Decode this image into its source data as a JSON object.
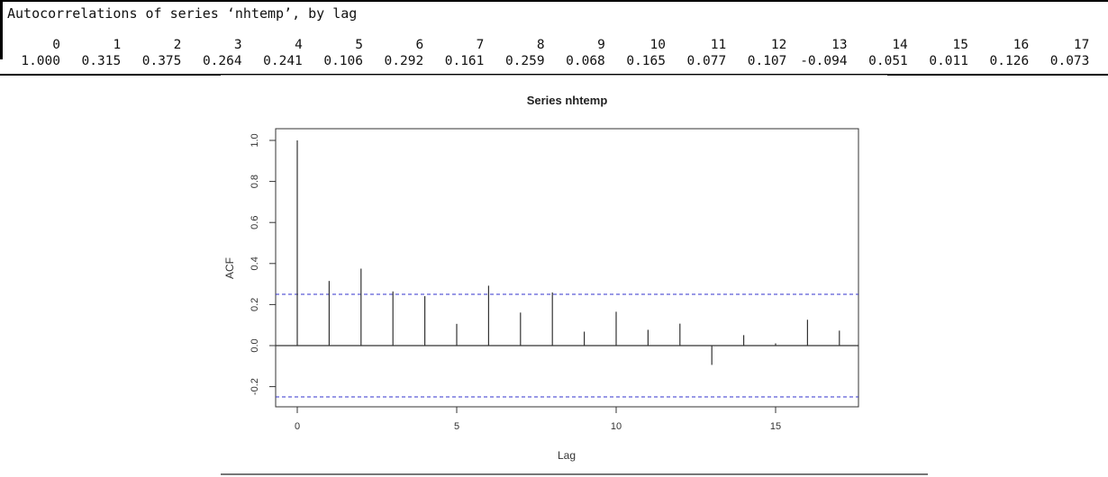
{
  "console": {
    "title": "Autocorrelations of series ‘nhtemp’, by lag",
    "lags": [
      "0",
      "1",
      "2",
      "3",
      "4",
      "5",
      "6",
      "7",
      "8",
      "9",
      "10",
      "11",
      "12",
      "13",
      "14",
      "15",
      "16",
      "17"
    ],
    "acf_text": [
      "1.000",
      "0.315",
      "0.375",
      "0.264",
      "0.241",
      "0.106",
      "0.292",
      "0.161",
      "0.259",
      "0.068",
      "0.165",
      "0.077",
      "0.107",
      "-0.094",
      "0.051",
      "0.011",
      "0.126",
      "0.073"
    ]
  },
  "chart_data": {
    "type": "bar",
    "title": "Series nhtemp",
    "xlabel": "Lag",
    "ylabel": "ACF",
    "x": [
      0,
      1,
      2,
      3,
      4,
      5,
      6,
      7,
      8,
      9,
      10,
      11,
      12,
      13,
      14,
      15,
      16,
      17
    ],
    "values": [
      1.0,
      0.315,
      0.375,
      0.264,
      0.241,
      0.106,
      0.292,
      0.161,
      0.259,
      0.068,
      0.165,
      0.077,
      0.107,
      -0.094,
      0.051,
      0.011,
      0.126,
      0.073
    ],
    "xlim": [
      0,
      17
    ],
    "ylim": [
      -0.3,
      1.0
    ],
    "x_ticks": [
      "0",
      "5",
      "10",
      "15"
    ],
    "y_ticks": [
      "-0.2",
      "0.0",
      "0.2",
      "0.4",
      "0.6",
      "0.8",
      "1.0"
    ],
    "confidence_bound": 0.25,
    "colors": {
      "bars": "#333333",
      "bounds": "#3333cc",
      "axes": "#333333"
    }
  }
}
